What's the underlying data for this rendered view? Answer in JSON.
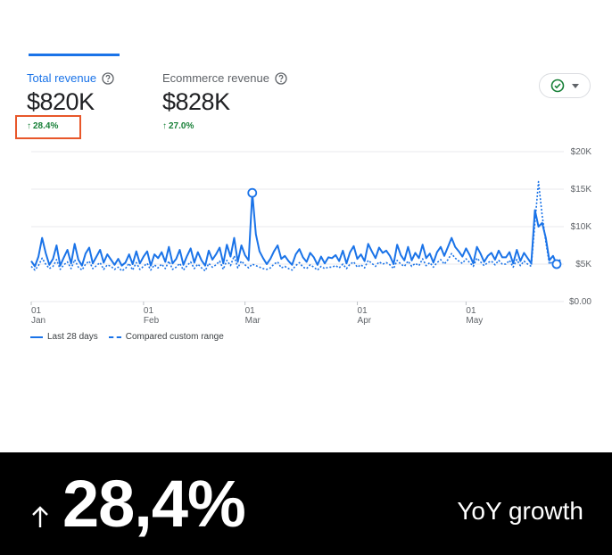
{
  "metrics": [
    {
      "label": "Total revenue",
      "value": "$820K",
      "change": "28.4%",
      "active": true
    },
    {
      "label": "Ecommerce revenue",
      "value": "$828K",
      "change": "27.0%",
      "active": false
    }
  ],
  "colors": {
    "accent": "#1a73e8",
    "positive": "#188038",
    "highlight": "#e8572a",
    "banner_bg": "#000000"
  },
  "icons": {
    "help": "help-circle-icon",
    "check": "check-circle-icon",
    "caret": "caret-down-icon",
    "arrow": "arrow-up-icon"
  },
  "chart_data": {
    "type": "line",
    "y_tick_labels": [
      "$0.00",
      "$5K",
      "$10K",
      "$15K",
      "$20K"
    ],
    "y_ticks": [
      0,
      5000,
      10000,
      15000,
      20000
    ],
    "ylim": [
      0,
      20000
    ],
    "x_tick_labels": [
      {
        "day": "01",
        "month": "Jan"
      },
      {
        "day": "01",
        "month": "Feb"
      },
      {
        "day": "01",
        "month": "Mar"
      },
      {
        "day": "01",
        "month": "Apr"
      },
      {
        "day": "01",
        "month": "May"
      }
    ],
    "x_tick_index": [
      0,
      31,
      59,
      90,
      120
    ],
    "grid": true,
    "legend_position": "bottom-left",
    "series": [
      {
        "name": "Last 28 days",
        "style": "solid",
        "values": [
          5400,
          4700,
          6000,
          8500,
          6500,
          4900,
          5700,
          7500,
          4800,
          5900,
          6900,
          5100,
          7700,
          5600,
          4800,
          6400,
          7200,
          5100,
          6000,
          6900,
          5200,
          6300,
          5600,
          4900,
          5700,
          4800,
          5200,
          6300,
          5000,
          6700,
          5100,
          6000,
          6700,
          4800,
          6300,
          5800,
          6600,
          5300,
          7300,
          5100,
          5700,
          6900,
          4900,
          6100,
          7100,
          5200,
          6600,
          5500,
          4800,
          6800,
          5600,
          6300,
          7200,
          5100,
          7600,
          6000,
          8500,
          5300,
          7500,
          6200,
          5500,
          14500,
          9000,
          6700,
          5800,
          5000,
          5700,
          6700,
          7500,
          5700,
          6100,
          5400,
          4900,
          6300,
          7000,
          5900,
          5300,
          6500,
          5900,
          4900,
          6000,
          5100,
          5900,
          5800,
          6200,
          5400,
          6800,
          5100,
          6600,
          7400,
          5700,
          6300,
          5400,
          7700,
          6700,
          5800,
          7200,
          6500,
          6800,
          6100,
          5000,
          7600,
          6200,
          5500,
          7300,
          5500,
          6500,
          5800,
          7600,
          5800,
          6400,
          5200,
          6600,
          7300,
          6100,
          7300,
          8500,
          7300,
          6700,
          6000,
          7100,
          6200,
          5100,
          7300,
          6400,
          5300,
          6100,
          6500,
          5600,
          6800,
          5900,
          5900,
          6600,
          5100,
          6900,
          5400,
          6500,
          5800,
          5100,
          12200,
          10000,
          10500,
          8500,
          5500,
          6100,
          5000,
          5600
        ],
        "markers": [
          61,
          145
        ]
      },
      {
        "name": "Compared custom range",
        "style": "dashed",
        "values": [
          4700,
          4200,
          4800,
          5800,
          5000,
          4400,
          4700,
          5600,
          4300,
          4900,
          5300,
          4400,
          5600,
          4600,
          4200,
          5000,
          5400,
          4400,
          4800,
          5200,
          4300,
          4900,
          4700,
          4300,
          4600,
          4100,
          4400,
          5100,
          4200,
          5200,
          4300,
          4700,
          5100,
          4200,
          4900,
          4500,
          5000,
          4400,
          5400,
          4300,
          4600,
          5100,
          4200,
          4800,
          5300,
          4400,
          5000,
          4500,
          4100,
          5100,
          4600,
          4900,
          5400,
          4300,
          5500,
          4800,
          6100,
          4500,
          5400,
          4900,
          4500,
          5000,
          4800,
          4600,
          4400,
          4300,
          4500,
          5000,
          5300,
          4500,
          4700,
          4400,
          4200,
          4800,
          5200,
          4600,
          4400,
          4900,
          4600,
          4200,
          4700,
          4400,
          4600,
          4600,
          4800,
          4500,
          5000,
          4400,
          5000,
          5300,
          4600,
          4900,
          4500,
          5500,
          5100,
          4700,
          5300,
          5000,
          5200,
          4900,
          4400,
          5500,
          5000,
          4700,
          5400,
          4700,
          5100,
          4800,
          5700,
          4800,
          5200,
          4600,
          5200,
          5600,
          5000,
          5600,
          6400,
          5800,
          5400,
          5100,
          5700,
          5200,
          4700,
          5800,
          5300,
          4800,
          5200,
          5400,
          4900,
          5500,
          5000,
          5000,
          5500,
          4600,
          5600,
          4800,
          5400,
          5000,
          4700,
          10500,
          16000,
          11500,
          8000,
          5000,
          5400,
          4500,
          4900
        ],
        "markers": []
      }
    ]
  },
  "banner": {
    "value": "28,4%",
    "caption": "YoY growth"
  }
}
